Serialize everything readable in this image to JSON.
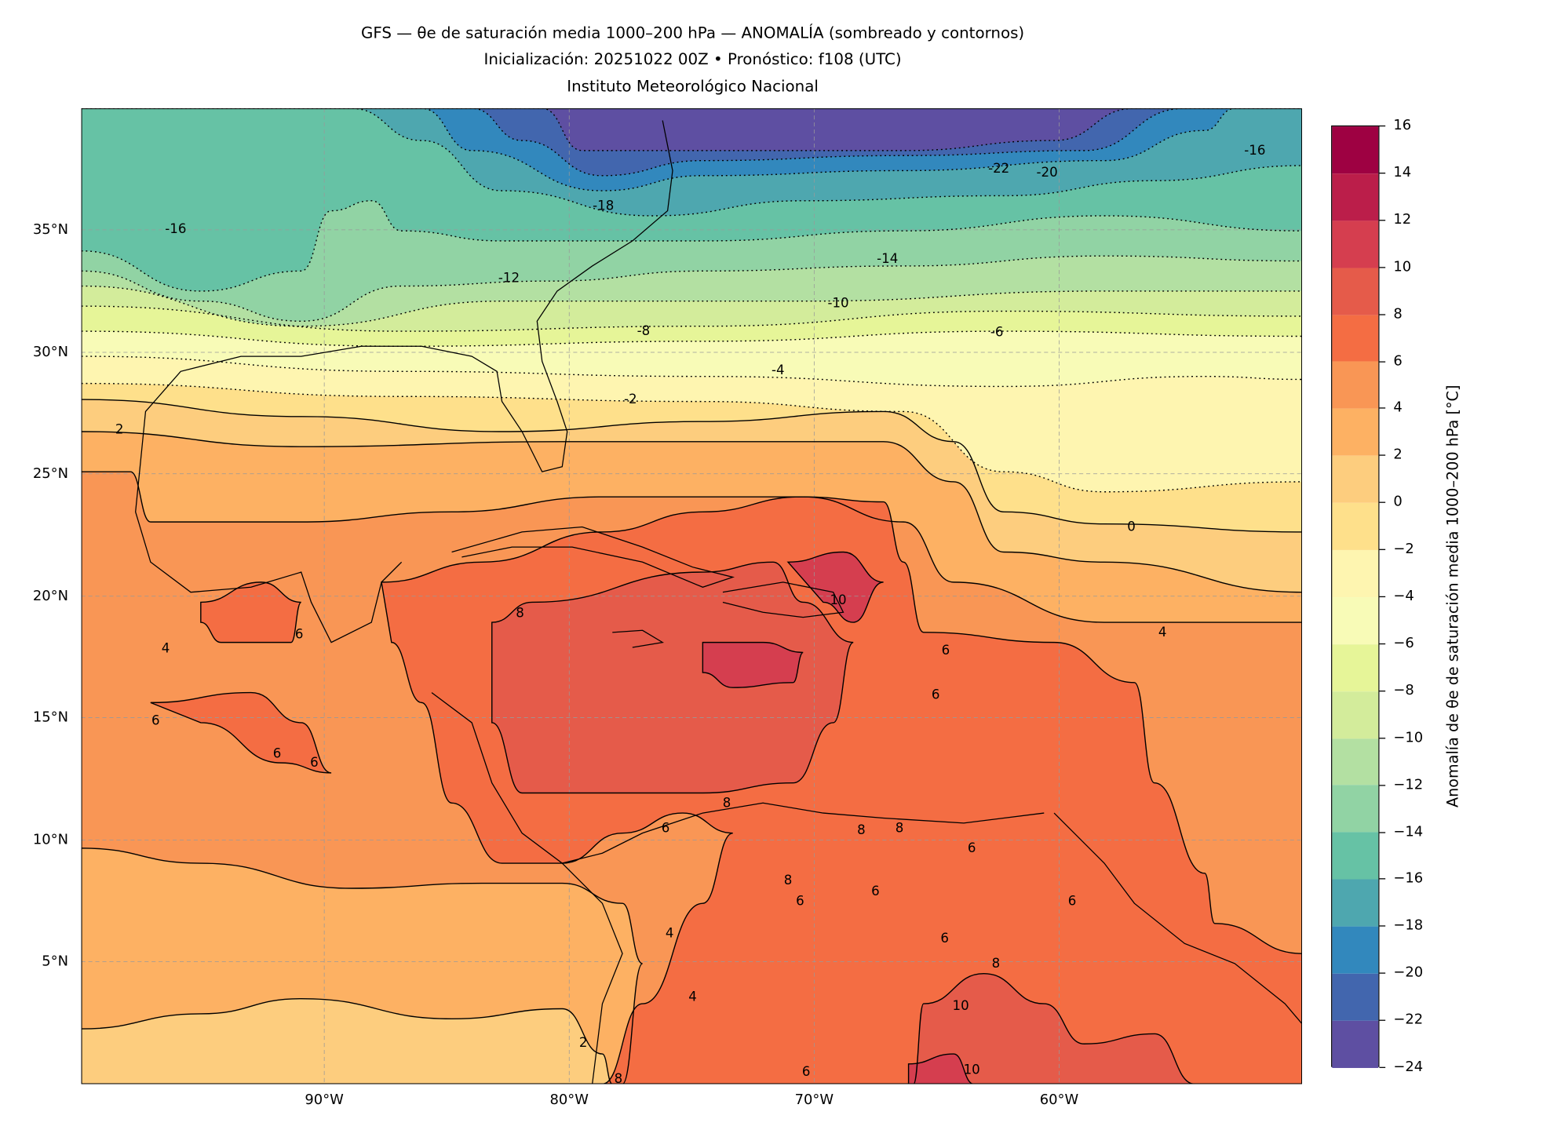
{
  "title": {
    "line1": "GFS — θe de saturación media 1000–200 hPa — ANOMALÍA (sombreado y contornos)",
    "line2": "Inicialización: 20251022 00Z   •   Pronóstico: f108 (UTC)",
    "line3": "Instituto Meteorológico Nacional"
  },
  "chart_data": {
    "type": "heatmap",
    "subtype": "filled-contour map",
    "title": "GFS — θe de saturación media 1000–200 hPa — ANOMALÍA (sombreado y contornos)",
    "xlim": [
      -100,
      -50
    ],
    "ylim": [
      0,
      40
    ],
    "x_ticks": [
      "90°W",
      "80°W",
      "70°W",
      "60°W"
    ],
    "y_ticks": [
      "35°N",
      "30°N",
      "25°N",
      "20°N",
      "15°N",
      "10°N",
      "5°N"
    ],
    "grid": true,
    "colorbar": {
      "label": "Anomalía de θe de saturación media 1000–200 hPa [°C]",
      "ticks": [
        "16",
        "14",
        "12",
        "10",
        "8",
        "6",
        "4",
        "2",
        "0",
        "−2",
        "−4",
        "−6",
        "−8",
        "−10",
        "−12",
        "−14",
        "−16",
        "−18",
        "−20",
        "−22",
        "−24"
      ],
      "levels": [
        -24,
        -22,
        -20,
        -18,
        -16,
        -14,
        -12,
        -10,
        -8,
        -6,
        -4,
        -2,
        0,
        2,
        4,
        6,
        8,
        10,
        12,
        14,
        16
      ],
      "colors": [
        "#5e4fa2",
        "#4266ae",
        "#3288bd",
        "#4ea7af",
        "#66c2a5",
        "#91d3a4",
        "#b3e0a2",
        "#d3ec9b",
        "#e6f598",
        "#f8fbb7",
        "#fef5b0",
        "#fee08b",
        "#fdcd7e",
        "#fdb163",
        "#f99655",
        "#f46d43",
        "#e55b4a",
        "#d53e4f",
        "#bb1e4a",
        "#9e0142"
      ]
    },
    "contour_labels": [
      "-16",
      "-12",
      "-18",
      "-14",
      "-10",
      "-8",
      "-6",
      "-4",
      "-2",
      "-22",
      "-20",
      "-16",
      "0",
      "4",
      "2",
      "10",
      "8",
      "6",
      "6",
      "4",
      "6",
      "6",
      "6",
      "8",
      "6",
      "8",
      "8",
      "6",
      "6",
      "6",
      "4",
      "6",
      "8",
      "10",
      "10",
      "2",
      "8",
      "6",
      "4",
      "6",
      "6",
      "8"
    ]
  }
}
